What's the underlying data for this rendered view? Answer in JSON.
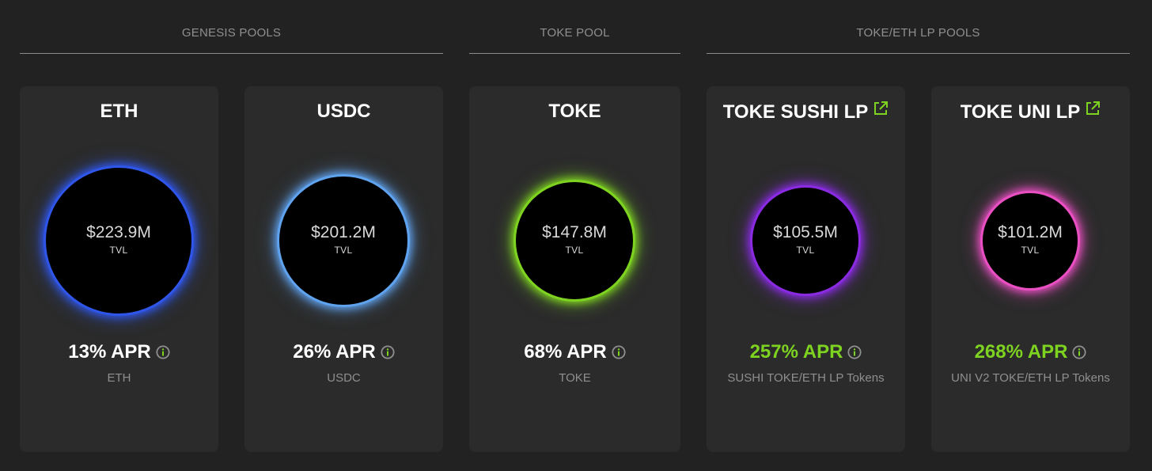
{
  "groups": [
    {
      "label": "GENESIS POOLS"
    },
    {
      "label": "TOKE POOL"
    },
    {
      "label": "TOKE/ETH LP POOLS"
    }
  ],
  "pools": [
    {
      "title": "ETH",
      "tvl": "$223.9M",
      "tvl_label": "TVL",
      "apr": "13% APR",
      "subtitle": "ETH",
      "ring_color": "#2f56e8",
      "apr_color": "#ffffff",
      "external_link": false
    },
    {
      "title": "USDC",
      "tvl": "$201.2M",
      "tvl_label": "TVL",
      "apr": "26% APR",
      "subtitle": "USDC",
      "ring_color": "#5fa2ee",
      "apr_color": "#ffffff",
      "external_link": false
    },
    {
      "title": "TOKE",
      "tvl": "$147.8M",
      "tvl_label": "TVL",
      "apr": "68% APR",
      "subtitle": "TOKE",
      "ring_color": "#7ed321",
      "apr_color": "#ffffff",
      "external_link": false
    },
    {
      "title": "TOKE SUSHI LP",
      "tvl": "$105.5M",
      "tvl_label": "TVL",
      "apr": "257% APR",
      "subtitle": "SUSHI TOKE/ETH LP Tokens",
      "ring_color": "#8a2be2",
      "apr_color": "#7ed321",
      "external_link": true
    },
    {
      "title": "TOKE UNI LP",
      "tvl": "$101.2M",
      "tvl_label": "TVL",
      "apr": "268% APR",
      "subtitle": "UNI V2 TOKE/ETH LP Tokens",
      "ring_color": "#e94fc3",
      "apr_color": "#7ed321",
      "external_link": true
    }
  ],
  "icons": {
    "info": "info-circle-icon",
    "external": "external-link-icon"
  },
  "colors": {
    "background": "#222222",
    "card": "#2b2b2b",
    "accent_green": "#7ed321",
    "muted_text": "#8f8f8f"
  }
}
